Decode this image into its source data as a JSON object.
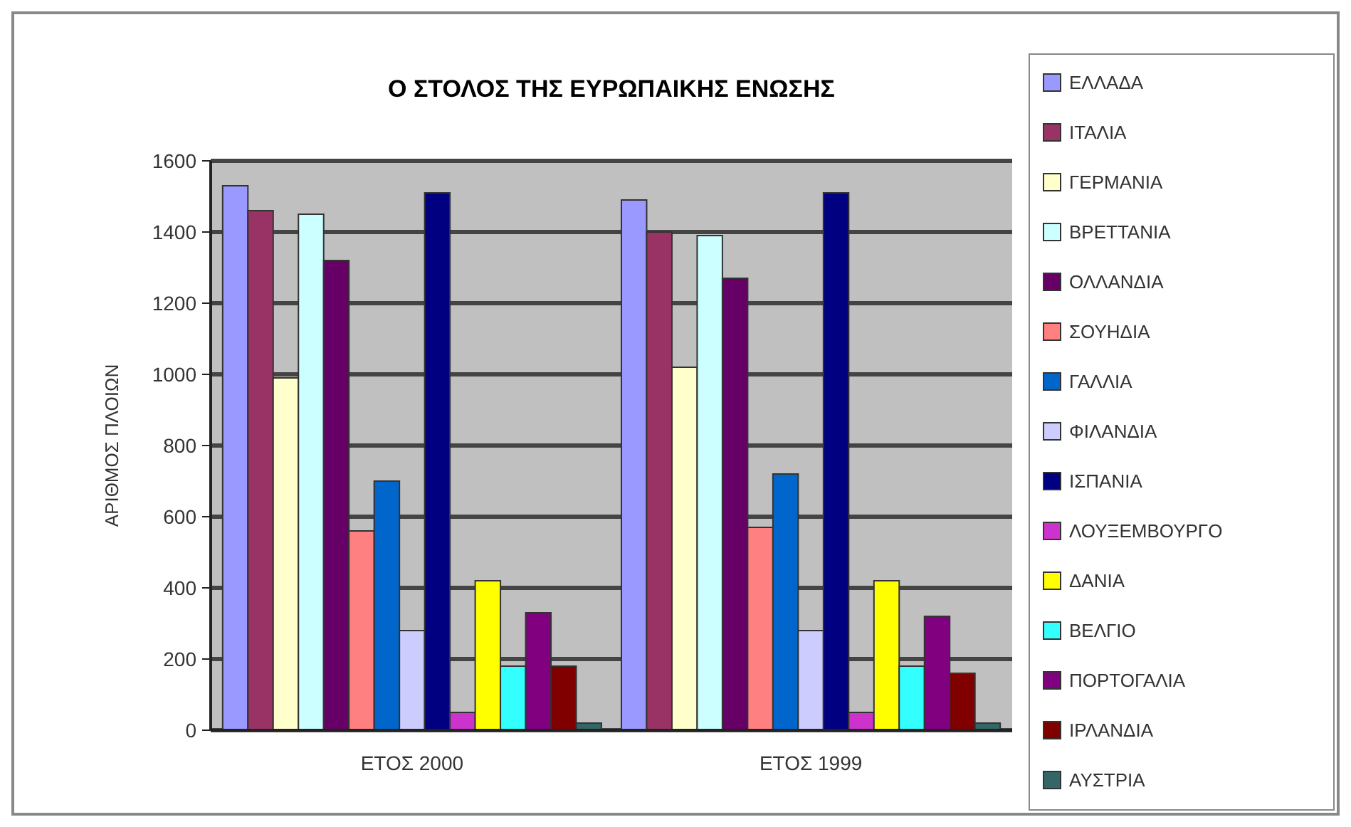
{
  "chart_data": {
    "type": "bar",
    "title": "Ο ΣΤΟΛΟΣ ΤΗΣ ΕΥΡΩΠΑΙΚΗΣ ΕΝΩΣΗΣ",
    "ylabel": "ΑΡΙΘΜΟΣ ΠΛΟΙΩΝ",
    "categories": [
      "ΕΤΟΣ 2000",
      "ΕΤΟΣ 1999"
    ],
    "series": [
      {
        "name": "ΕΛΛΑΔΑ",
        "color": "#9999ff",
        "values": [
          1530,
          1490
        ]
      },
      {
        "name": "ΙΤΑΛΙΑ",
        "color": "#993366",
        "values": [
          1460,
          1400
        ]
      },
      {
        "name": "ΓΕΡΜΑΝΙΑ",
        "color": "#ffffcc",
        "values": [
          990,
          1020
        ]
      },
      {
        "name": "ΒΡΕΤΤΑΝΙΑ",
        "color": "#ccffff",
        "values": [
          1450,
          1390
        ]
      },
      {
        "name": "ΟΛΛΑΝΔΙΑ",
        "color": "#660066",
        "values": [
          1320,
          1270
        ]
      },
      {
        "name": "ΣΟΥΗΔΙΑ",
        "color": "#ff8080",
        "values": [
          560,
          570
        ]
      },
      {
        "name": "ΓΑΛΛΙΑ",
        "color": "#0066cc",
        "values": [
          700,
          720
        ]
      },
      {
        "name": "ΦΙΛΑΝΔΙΑ",
        "color": "#ccccff",
        "values": [
          280,
          280
        ]
      },
      {
        "name": "ΙΣΠΑΝΙΑ",
        "color": "#000080",
        "values": [
          1510,
          1510
        ]
      },
      {
        "name": "ΛΟΥΞΕΜΒΟΥΡΓΟ",
        "color": "#cc33cc",
        "values": [
          50,
          50
        ]
      },
      {
        "name": "ΔΑΝΙΑ",
        "color": "#ffff00",
        "values": [
          420,
          420
        ]
      },
      {
        "name": "ΒΕΛΓΙΟ",
        "color": "#33ffff",
        "values": [
          180,
          180
        ]
      },
      {
        "name": "ΠΟΡΤΟΓΑΛΙΑ",
        "color": "#800080",
        "values": [
          330,
          320
        ]
      },
      {
        "name": "ΙΡΛΑΝΔΙΑ",
        "color": "#800000",
        "values": [
          180,
          160
        ]
      },
      {
        "name": "ΑΥΣΤΡΙΑ",
        "color": "#336666",
        "values": [
          20,
          20
        ]
      }
    ],
    "ylim": [
      0,
      1600
    ],
    "yticks": [
      0,
      200,
      400,
      600,
      800,
      1000,
      1200,
      1400,
      1600
    ],
    "grid": "y",
    "legend": "right"
  }
}
